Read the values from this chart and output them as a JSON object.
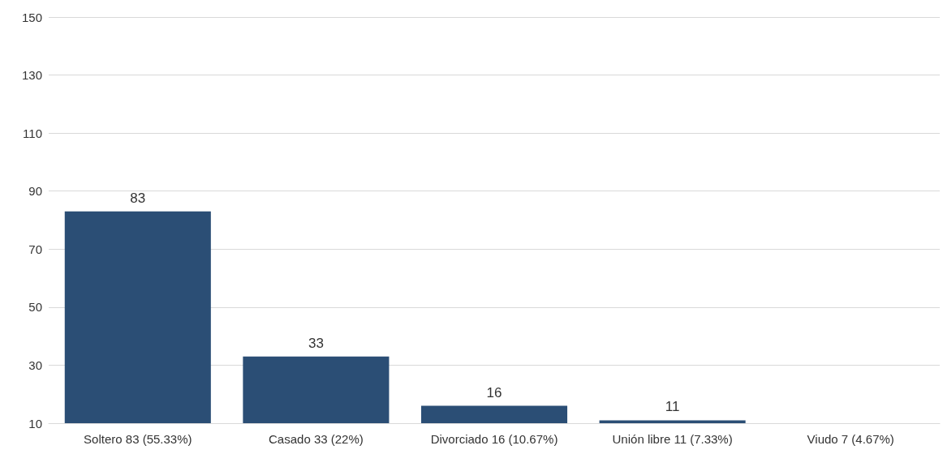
{
  "chart_data": {
    "type": "bar",
    "categories": [
      "Soltero 83 (55.33%)",
      "Casado 33 (22%)",
      "Divorciado 16 (10.67%)",
      "Unión libre 11 (7.33%)",
      "Viudo 7 (4.67%)"
    ],
    "values": [
      83,
      33,
      16,
      11,
      null
    ],
    "color": "#2b4e75",
    "ylim": [
      10,
      150
    ],
    "yticks": [
      10,
      30,
      50,
      70,
      90,
      110,
      130,
      150
    ],
    "grid": "y",
    "data_labels": true
  }
}
